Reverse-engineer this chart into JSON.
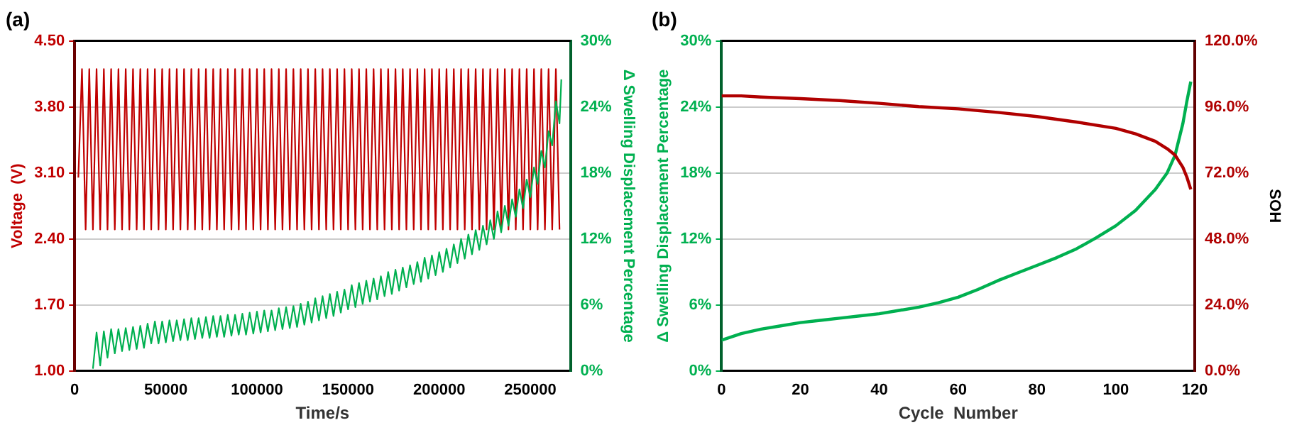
{
  "chart_data": [
    {
      "type": "line",
      "title": "(a)",
      "xlabel": "Time/s",
      "ylabel": "Voltage  (V)",
      "y2label": "Δ Swelling Displacement Percentage",
      "xlim": [
        0,
        272000
      ],
      "xticks": [
        0,
        50000,
        100000,
        150000,
        200000,
        250000
      ],
      "ylim": [
        1.0,
        4.5
      ],
      "yticks": [
        {
          "value": 1.0,
          "label": "1.00"
        },
        {
          "value": 1.7,
          "label": "1.70"
        },
        {
          "value": 2.4,
          "label": "2.40"
        },
        {
          "value": 3.1,
          "label": "3.10"
        },
        {
          "value": 3.8,
          "label": "3.80"
        },
        {
          "value": 4.5,
          "label": "4.50"
        }
      ],
      "y2lim": [
        0,
        30
      ],
      "y2ticks": [
        {
          "value": 0,
          "label": "0%"
        },
        {
          "value": 6,
          "label": "6%"
        },
        {
          "value": 12,
          "label": "12%"
        },
        {
          "value": 18,
          "label": "18%"
        },
        {
          "value": 24,
          "label": "24%"
        },
        {
          "value": 30,
          "label": "30%"
        }
      ],
      "grid": "y",
      "series": [
        {
          "color": "#c00000",
          "x": [
            2000,
            4000,
            6000,
            8000,
            10000,
            12000,
            14000,
            16000,
            18000,
            20000,
            22000,
            24000,
            26000,
            28000,
            30000,
            32000,
            34000,
            36000,
            38000,
            40000,
            42000,
            44000,
            46000,
            48000,
            50000,
            52000,
            54000,
            56000,
            58000,
            60000,
            62000,
            64000,
            66000,
            68000,
            70000,
            72000,
            74000,
            76000,
            78000,
            80000,
            82000,
            84000,
            86000,
            88000,
            90000,
            92000,
            94000,
            96000,
            98000,
            100000,
            102000,
            104000,
            106000,
            108000,
            110000,
            112000,
            114000,
            116000,
            118000,
            120000,
            122000,
            124000,
            126000,
            128000,
            130000,
            132000,
            134000,
            136000,
            138000,
            140000,
            142000,
            144000,
            146000,
            148000,
            150000,
            152000,
            154000,
            156000,
            158000,
            160000,
            162000,
            164000,
            166000,
            168000,
            170000,
            172000,
            174000,
            176000,
            178000,
            180000,
            182000,
            184000,
            186000,
            188000,
            190000,
            192000,
            194000,
            196000,
            198000,
            200000,
            202000,
            204000,
            206000,
            208000,
            210000,
            212000,
            214000,
            216000,
            218000,
            220000,
            222000,
            224000,
            226000,
            228000,
            230000,
            232000,
            234000,
            236000,
            238000,
            240000,
            242000,
            244000,
            246000,
            248000,
            250000,
            252000,
            254000,
            256000,
            258000,
            260000,
            262000,
            264000,
            266000
          ],
          "values": [
            3.05,
            4.2,
            2.5,
            4.2,
            2.5,
            4.2,
            2.5,
            4.2,
            2.5,
            4.2,
            2.5,
            4.2,
            2.5,
            4.2,
            2.5,
            4.2,
            2.5,
            4.2,
            2.5,
            4.2,
            2.5,
            4.2,
            2.5,
            4.2,
            2.5,
            4.2,
            2.5,
            4.2,
            2.5,
            4.2,
            2.5,
            4.2,
            2.5,
            4.2,
            2.5,
            4.2,
            2.5,
            4.2,
            2.5,
            4.2,
            2.5,
            4.2,
            2.5,
            4.2,
            2.5,
            4.2,
            2.5,
            4.2,
            2.5,
            4.2,
            2.5,
            4.2,
            2.5,
            4.2,
            2.5,
            4.2,
            2.5,
            4.2,
            2.5,
            4.2,
            2.5,
            4.2,
            2.5,
            4.2,
            2.5,
            4.2,
            2.5,
            4.2,
            2.5,
            4.2,
            2.5,
            4.2,
            2.5,
            4.2,
            2.5,
            4.2,
            2.5,
            4.2,
            2.5,
            4.2,
            2.5,
            4.2,
            2.5,
            4.2,
            2.5,
            4.2,
            2.5,
            4.2,
            2.5,
            4.2,
            2.5,
            4.2,
            2.5,
            4.2,
            2.5,
            4.2,
            2.5,
            4.2,
            2.5,
            4.2,
            2.5,
            4.2,
            2.5,
            4.2,
            2.5,
            4.2,
            2.5,
            4.2,
            2.5,
            4.2,
            2.5,
            4.2,
            2.5,
            4.2,
            2.5,
            4.2,
            2.5,
            4.2,
            2.5,
            4.2,
            2.5,
            4.2,
            2.5,
            4.2,
            2.5,
            4.2,
            2.5,
            4.2,
            2.5,
            4.2,
            2.5,
            4.2,
            2.5
          ]
        },
        {
          "color": "#00b050",
          "axis": "y2",
          "x": [
            10000,
            12000,
            14000,
            16000,
            18000,
            20000,
            22000,
            24000,
            26000,
            28000,
            30000,
            32000,
            34000,
            36000,
            38000,
            40000,
            42000,
            44000,
            46000,
            48000,
            50000,
            52000,
            54000,
            56000,
            58000,
            60000,
            62000,
            64000,
            66000,
            68000,
            70000,
            72000,
            74000,
            76000,
            78000,
            80000,
            82000,
            84000,
            86000,
            88000,
            90000,
            92000,
            94000,
            96000,
            98000,
            100000,
            102000,
            104000,
            106000,
            108000,
            110000,
            112000,
            114000,
            116000,
            118000,
            120000,
            122000,
            124000,
            126000,
            128000,
            130000,
            132000,
            134000,
            136000,
            138000,
            140000,
            142000,
            144000,
            146000,
            148000,
            150000,
            152000,
            154000,
            156000,
            158000,
            160000,
            162000,
            164000,
            166000,
            168000,
            170000,
            172000,
            174000,
            176000,
            178000,
            180000,
            182000,
            184000,
            186000,
            188000,
            190000,
            192000,
            194000,
            196000,
            198000,
            200000,
            202000,
            204000,
            206000,
            208000,
            210000,
            212000,
            214000,
            216000,
            218000,
            220000,
            222000,
            224000,
            226000,
            228000,
            230000,
            232000,
            234000,
            236000,
            238000,
            240000,
            242000,
            244000,
            246000,
            248000,
            250000,
            252000,
            254000,
            256000,
            258000,
            260000,
            262000,
            264000,
            266000,
            267000
          ],
          "values": [
            0.2,
            3.5,
            0.5,
            3.6,
            1.2,
            3.8,
            1.6,
            3.8,
            1.8,
            3.9,
            1.9,
            4.0,
            2.0,
            4.1,
            2.1,
            4.3,
            2.5,
            4.5,
            2.5,
            4.5,
            2.6,
            4.6,
            2.7,
            4.6,
            2.8,
            4.7,
            2.8,
            4.8,
            2.9,
            4.8,
            3.0,
            4.9,
            3.0,
            5.0,
            3.1,
            5.0,
            3.1,
            5.1,
            3.2,
            5.1,
            3.3,
            5.2,
            3.3,
            5.3,
            3.4,
            5.4,
            3.5,
            5.5,
            3.6,
            5.5,
            3.7,
            5.7,
            3.8,
            5.8,
            3.9,
            5.9,
            4.0,
            6.1,
            4.2,
            6.3,
            4.4,
            6.6,
            4.6,
            6.8,
            4.8,
            7.0,
            5.0,
            7.2,
            5.3,
            7.4,
            5.6,
            7.8,
            5.8,
            8.0,
            6.1,
            8.2,
            6.3,
            8.4,
            6.5,
            8.6,
            6.8,
            9.0,
            7.0,
            9.2,
            7.3,
            9.4,
            7.6,
            9.6,
            7.9,
            9.9,
            8.1,
            10.3,
            8.4,
            10.5,
            8.7,
            10.8,
            9.0,
            11.1,
            9.4,
            11.5,
            9.8,
            12.0,
            10.2,
            12.4,
            10.6,
            12.8,
            11.0,
            13.2,
            11.5,
            13.7,
            12.0,
            14.5,
            12.6,
            15.0,
            13.2,
            15.6,
            14.0,
            16.5,
            14.8,
            17.4,
            15.8,
            18.5,
            17.0,
            20.0,
            18.5,
            21.8,
            20.5,
            24.5,
            22.5,
            26.5
          ]
        }
      ]
    },
    {
      "type": "line",
      "title": "(b)",
      "xlabel": "Cycle  Number",
      "ylabel": "Δ Swelling Displacement Percentage",
      "y2label": "SOH",
      "xlim": [
        0,
        120
      ],
      "xticks": [
        0,
        20,
        40,
        60,
        80,
        100,
        120
      ],
      "ylim": [
        0,
        30
      ],
      "yticks": [
        {
          "value": 0,
          "label": "0%"
        },
        {
          "value": 6,
          "label": "6%"
        },
        {
          "value": 12,
          "label": "12%"
        },
        {
          "value": 18,
          "label": "18%"
        },
        {
          "value": 24,
          "label": "24%"
        },
        {
          "value": 30,
          "label": "30%"
        }
      ],
      "y2lim": [
        0,
        120
      ],
      "y2ticks": [
        {
          "value": 0,
          "label": "0.0%"
        },
        {
          "value": 24,
          "label": "24.0%"
        },
        {
          "value": 48,
          "label": "48.0%"
        },
        {
          "value": 72,
          "label": "72.0%"
        },
        {
          "value": 96,
          "label": "96.0%"
        },
        {
          "value": 120,
          "label": "120.0%"
        }
      ],
      "grid": "y",
      "series": [
        {
          "color": "#00b050",
          "x": [
            0,
            5,
            10,
            15,
            20,
            25,
            30,
            35,
            40,
            45,
            50,
            55,
            60,
            65,
            70,
            75,
            80,
            85,
            90,
            95,
            100,
            105,
            110,
            113,
            115,
            117,
            118,
            119
          ],
          "values": [
            2.8,
            3.4,
            3.8,
            4.1,
            4.4,
            4.6,
            4.8,
            5.0,
            5.2,
            5.5,
            5.8,
            6.2,
            6.7,
            7.4,
            8.2,
            8.9,
            9.6,
            10.3,
            11.1,
            12.1,
            13.2,
            14.6,
            16.5,
            18.0,
            19.6,
            22.5,
            24.5,
            26.3
          ]
        },
        {
          "color": "#b00000",
          "axis": "y2",
          "x": [
            0,
            5,
            10,
            20,
            30,
            40,
            50,
            60,
            70,
            80,
            90,
            100,
            105,
            110,
            113,
            115,
            117,
            118,
            119
          ],
          "values": [
            100,
            100,
            99.6,
            99,
            98.3,
            97.3,
            96.1,
            95.3,
            94,
            92.5,
            90.5,
            88.2,
            86.2,
            83.5,
            80.8,
            78.5,
            74,
            70.5,
            66
          ]
        }
      ]
    }
  ]
}
